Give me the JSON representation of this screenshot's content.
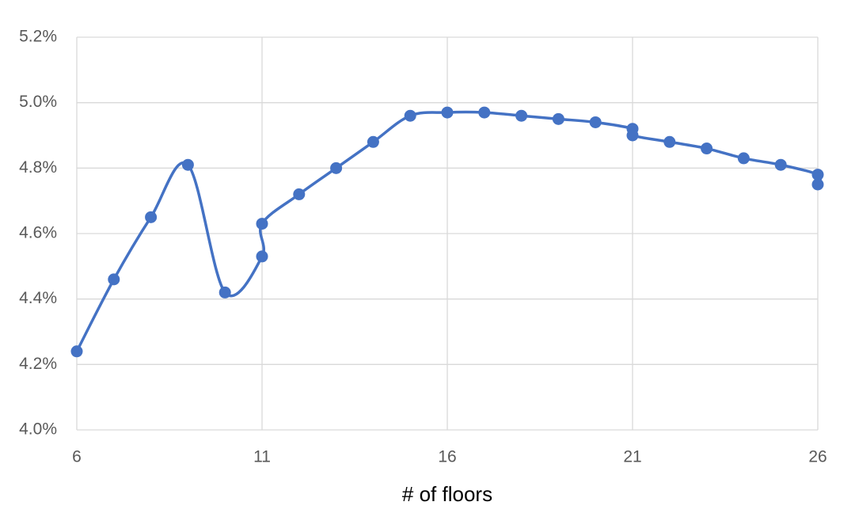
{
  "chart_data": {
    "type": "scatter-line",
    "xlabel": "# of floors",
    "x": [
      6,
      7,
      8,
      9,
      10,
      11,
      11,
      12,
      13,
      14,
      15,
      16,
      17,
      18,
      19,
      20,
      21,
      21,
      22,
      23,
      24,
      25,
      26,
      26
    ],
    "values": [
      4.24,
      4.46,
      4.65,
      4.81,
      4.42,
      4.53,
      4.63,
      4.72,
      4.8,
      4.88,
      4.96,
      4.97,
      4.97,
      4.96,
      4.95,
      4.94,
      4.92,
      4.9,
      4.88,
      4.86,
      4.83,
      4.81,
      4.78,
      4.75
    ],
    "color": "#4472c4",
    "xlim": [
      6,
      26
    ],
    "xticks": [
      6,
      11,
      16,
      21,
      26
    ],
    "ylim": [
      4.0,
      5.2
    ],
    "yticks": [
      {
        "value": 4.0,
        "label": "4.0%"
      },
      {
        "value": 4.2,
        "label": "4.2%"
      },
      {
        "value": 4.4,
        "label": "4.4%"
      },
      {
        "value": 4.6,
        "label": "4.6%"
      },
      {
        "value": 4.8,
        "label": "4.8%"
      },
      {
        "value": 5.0,
        "label": "5.0%"
      },
      {
        "value": 5.2,
        "label": "5.2%"
      }
    ],
    "grid": true
  }
}
